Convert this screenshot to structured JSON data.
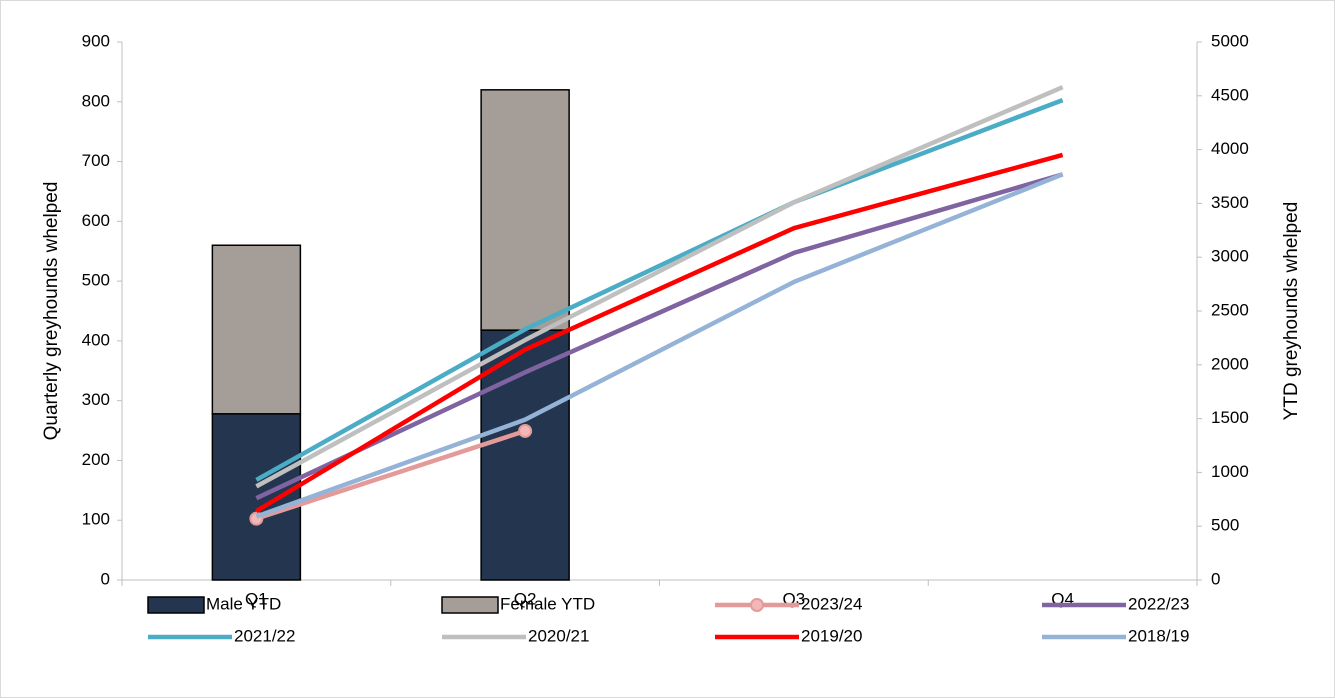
{
  "chart_data": {
    "type": "combo",
    "categories": [
      "Q1",
      "Q2",
      "Q3",
      "Q4"
    ],
    "y_label": "Quarterly greyhounds whelped",
    "y2_label": "YTD greyhounds whelped",
    "ylim": [
      0,
      900
    ],
    "yticks": [
      0,
      100,
      200,
      300,
      400,
      500,
      600,
      700,
      800,
      900
    ],
    "y2lim": [
      0,
      5000
    ],
    "y2ticks": [
      0,
      500,
      1000,
      1500,
      2000,
      2500,
      3000,
      3500,
      4000,
      4500,
      5000
    ],
    "series": [
      {
        "name": "Male YTD",
        "type": "bar",
        "axis": "y",
        "color": "#243550",
        "values": [
          278,
          418,
          null,
          null
        ]
      },
      {
        "name": "Female YTD",
        "type": "bar",
        "axis": "y",
        "color": "#a59d98",
        "values": [
          282,
          402,
          null,
          null
        ]
      },
      {
        "name": "2023/24",
        "type": "line",
        "axis": "y2",
        "color": "#e59a9a",
        "marker": true,
        "values": [
          570,
          1385,
          null,
          null
        ]
      },
      {
        "name": "2022/23",
        "type": "line",
        "axis": "y2",
        "color": "#8063a1",
        "values": [
          760,
          1930,
          3040,
          3770
        ]
      },
      {
        "name": "2021/22",
        "type": "line",
        "axis": "y2",
        "color": "#4aacc5",
        "values": [
          930,
          2330,
          3510,
          4460
        ]
      },
      {
        "name": "2020/21",
        "type": "line",
        "axis": "y2",
        "color": "#bfbfbf",
        "values": [
          870,
          2230,
          3510,
          4580
        ]
      },
      {
        "name": "2019/20",
        "type": "line",
        "axis": "y2",
        "color": "#ff0000",
        "values": [
          640,
          2140,
          3270,
          3950
        ]
      },
      {
        "name": "2018/19",
        "type": "line",
        "axis": "y2",
        "color": "#94b3d7",
        "values": [
          590,
          1490,
          2770,
          3770
        ]
      }
    ]
  }
}
